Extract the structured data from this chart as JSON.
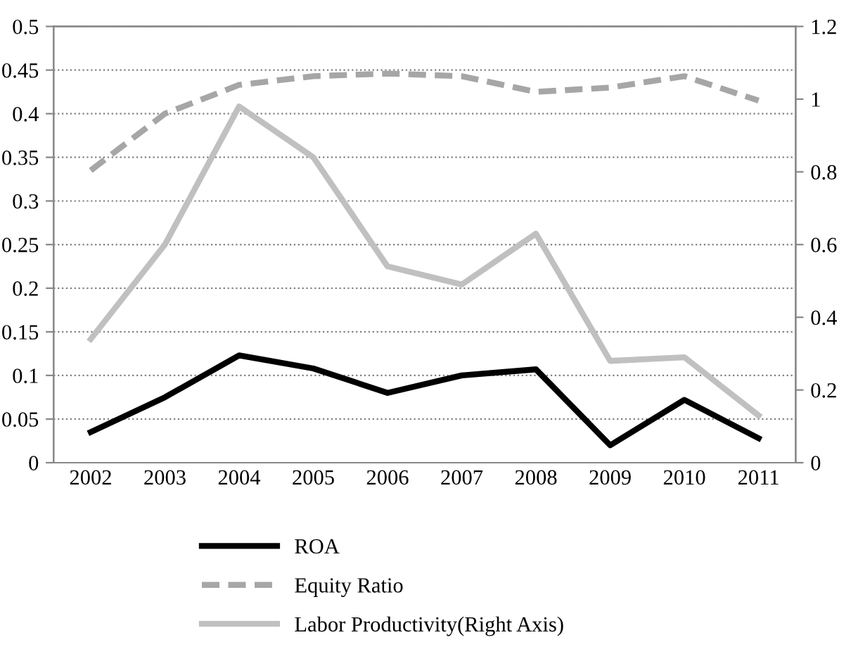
{
  "chart_data": {
    "type": "line",
    "categories": [
      "2002",
      "2003",
      "2004",
      "2005",
      "2006",
      "2007",
      "2008",
      "2009",
      "2010",
      "2011"
    ],
    "series": [
      {
        "name": "ROA",
        "color": "#000000",
        "line_style": "solid",
        "values": [
          0.035,
          0.075,
          0.123,
          0.108,
          0.08,
          0.1,
          0.107,
          0.02,
          0.072,
          0.028
        ]
      },
      {
        "name": "Equity Ratio",
        "color": "#a6a6a6",
        "line_style": "dashed",
        "values": [
          0.335,
          0.4,
          0.433,
          0.443,
          0.446,
          0.443,
          0.425,
          0.43,
          0.443,
          0.415
        ]
      },
      {
        "name": "Labor Productivity(Right Axis)",
        "color": "#c0c0c0",
        "line_style": "solid",
        "axis": "y2",
        "values": [
          0.34,
          0.6,
          0.98,
          0.84,
          0.54,
          0.49,
          0.63,
          0.28,
          0.29,
          0.13
        ]
      }
    ],
    "ylim": [
      0,
      0.5
    ],
    "yticks": [
      0,
      0.05,
      0.1,
      0.15,
      0.2,
      0.25,
      0.3,
      0.35,
      0.4,
      0.45,
      0.5
    ],
    "y2lim": [
      0,
      1.2
    ],
    "y2ticks": [
      0,
      0.2,
      0.4,
      0.6,
      0.8,
      1,
      1.2
    ],
    "grid": "y",
    "legend": "bottom",
    "marker": "none"
  }
}
